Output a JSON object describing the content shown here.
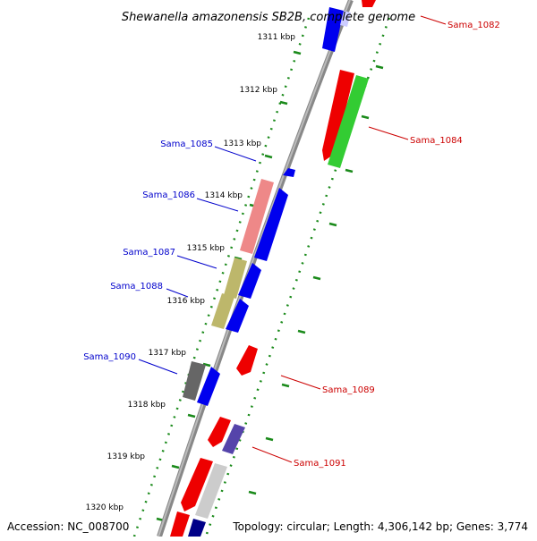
{
  "title": "Shewanella amazonensis SB2B, complete genome",
  "accession": "Accession: NC_008700",
  "topology": "Topology: circular; Length: 4,306,142 bp; Genes: 3,774",
  "ticks": [
    "1311 kbp",
    "1312 kbp",
    "1313 kbp",
    "1314 kbp",
    "1315 kbp",
    "1316 kbp",
    "1317 kbp",
    "1318 kbp",
    "1319 kbp",
    "1320 kbp"
  ],
  "genes_left": [
    "Sama_1085",
    "Sama_1086",
    "Sama_1087",
    "Sama_1088",
    "Sama_1090"
  ],
  "genes_right": [
    "Sama_1082",
    "Sama_1084",
    "Sama_1089",
    "Sama_1091"
  ],
  "colors": {
    "backbone": "#8a8a8a",
    "dots": "#1a8a1a",
    "forward_cds": "#ee0000",
    "reverse_cds": "#0000ee",
    "label_left": "#0000cc",
    "label_right": "#cc0000",
    "green_feature": "#33cc33",
    "pink_feature": "#ee8888",
    "khaki_feature": "#bdb76b",
    "gray_feature": "#666666",
    "purple_feature": "#5544aa",
    "light_gray_feature": "#cccccc",
    "navy_feature": "#000088"
  }
}
